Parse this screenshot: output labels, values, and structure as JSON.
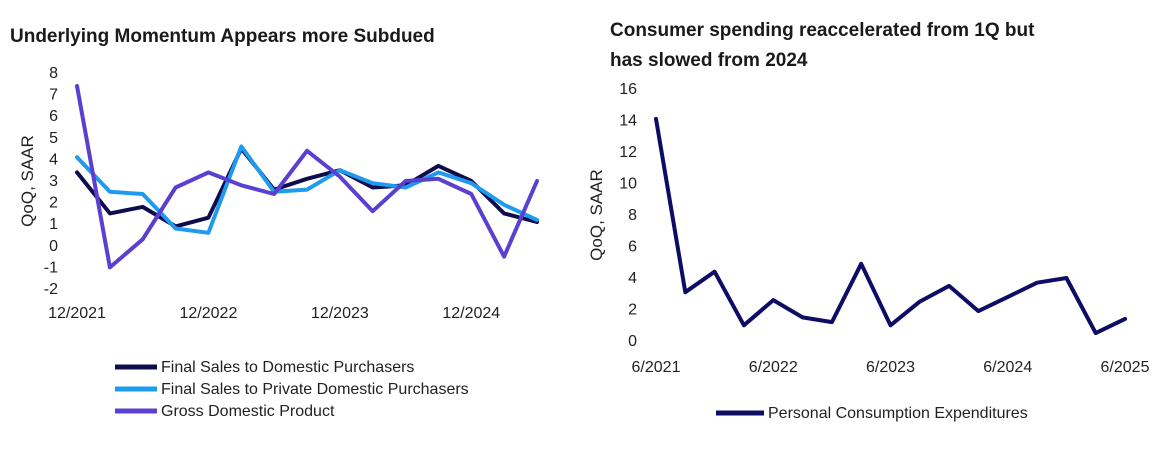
{
  "chart_data": [
    {
      "type": "line",
      "title": "Underlying Momentum Appears more Subdued",
      "ylabel": "QoQ, SAAR",
      "xlabel": "",
      "ylim": [
        -2,
        8
      ],
      "yticks": [
        -2,
        -1,
        0,
        1,
        2,
        3,
        4,
        5,
        6,
        7,
        8
      ],
      "x_tick_labels": [
        "12/2021",
        "12/2022",
        "12/2023",
        "12/2024"
      ],
      "x": [
        "12/2021",
        "3/2022",
        "6/2022",
        "9/2022",
        "12/2022",
        "3/2023",
        "6/2023",
        "9/2023",
        "12/2023",
        "3/2024",
        "6/2024",
        "9/2024",
        "12/2024",
        "3/2025",
        "6/2025"
      ],
      "legend_position": "bottom",
      "series": [
        {
          "name": "Final Sales to Domestic Purchasers",
          "color": "#0d0d4d",
          "values": [
            3.4,
            1.5,
            1.8,
            0.9,
            1.3,
            4.5,
            2.6,
            3.1,
            3.5,
            2.7,
            2.8,
            3.7,
            3.0,
            1.5,
            1.1
          ]
        },
        {
          "name": "Final Sales to Private Domestic Purchasers",
          "color": "#1e9bef",
          "values": [
            4.1,
            2.5,
            2.4,
            0.8,
            0.6,
            4.6,
            2.5,
            2.6,
            3.5,
            2.9,
            2.7,
            3.4,
            2.9,
            1.9,
            1.2
          ]
        },
        {
          "name": "Gross Domestic Product",
          "color": "#5a3fd1",
          "values": [
            7.4,
            -1.0,
            0.3,
            2.7,
            3.4,
            2.8,
            2.4,
            4.4,
            3.2,
            1.6,
            3.0,
            3.1,
            2.4,
            -0.5,
            3.0
          ]
        }
      ]
    },
    {
      "type": "line",
      "title": "Consumer spending reaccelerated from 1Q but has slowed from 2024",
      "ylabel": "QoQ, SAAR",
      "xlabel": "",
      "ylim": [
        0,
        16
      ],
      "yticks": [
        0,
        2,
        4,
        6,
        8,
        10,
        12,
        14,
        16
      ],
      "x_tick_labels": [
        "6/2021",
        "6/2022",
        "6/2023",
        "6/2024",
        "6/2025"
      ],
      "x": [
        "6/2021",
        "9/2021",
        "12/2021",
        "3/2022",
        "6/2022",
        "9/2022",
        "12/2022",
        "3/2023",
        "6/2023",
        "9/2023",
        "12/2023",
        "3/2024",
        "6/2024",
        "9/2024",
        "12/2024",
        "3/2025",
        "6/2025"
      ],
      "legend_position": "bottom",
      "series": [
        {
          "name": "Personal Consumption Expenditures",
          "color": "#0d0d66",
          "values": [
            14.1,
            3.1,
            4.4,
            1.0,
            2.6,
            1.5,
            1.2,
            4.9,
            1.0,
            2.5,
            3.5,
            1.9,
            2.8,
            3.7,
            4.0,
            0.5,
            1.4
          ]
        }
      ]
    }
  ]
}
